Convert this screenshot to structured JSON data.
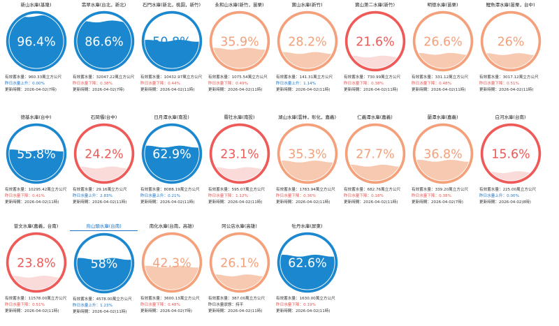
{
  "colors": {
    "blue": "#1a87cf",
    "orange": "#f4a07a",
    "red": "#ee5a58",
    "up": "#1a73c8",
    "down": "#e8544f"
  },
  "labels": {
    "capacity_prefix": "有效蓄水量：",
    "unit": "萬立方公尺",
    "update_prefix": "更新時間："
  },
  "reservoirs": [
    {
      "name": "新山水庫(基隆)",
      "pct": 96.4,
      "pct_text": "96.4%",
      "theme": "blue",
      "capacity": "960.33",
      "change_text": "昨日水量上升：0.00%",
      "change_dir": "up",
      "time": "2026-04-02(7時)"
    },
    {
      "name": "翡翠水庫(台北，新北)",
      "pct": 86.6,
      "pct_text": "86.6%",
      "theme": "blue",
      "capacity": "32047.22",
      "change_text": "昨日水量下降：0.38%",
      "change_dir": "down",
      "time": "2026-04-02(7時)"
    },
    {
      "name": "石門水庫(新北，桃園，新竹)",
      "pct": 50.8,
      "pct_text": "50.8%",
      "theme": "blue",
      "capacity": "10432.97",
      "change_text": "昨日水量下降：0.44%",
      "change_dir": "down",
      "time": "2026-04-02(11時)"
    },
    {
      "name": "永和山水庫(新竹，苗栗)",
      "pct": 35.9,
      "pct_text": "35.9%",
      "theme": "orange",
      "capacity": "1075.54",
      "change_text": "昨日水量下降：0.49%",
      "change_dir": "down",
      "time": "2026-04-02(11時)"
    },
    {
      "name": "寶山水庫(新竹)",
      "pct": 28.2,
      "pct_text": "28.2%",
      "theme": "orange",
      "capacity": "141.31",
      "change_text": "昨日水量上升：1.14%",
      "change_dir": "up",
      "time": "2026-04-02(11時)"
    },
    {
      "name": "寶山第二水庫(新竹)",
      "pct": 21.6,
      "pct_text": "21.6%",
      "theme": "red",
      "capacity": "730.99",
      "change_text": "昨日水量下降：0.38%",
      "change_dir": "down",
      "time": "2026-04-02(11時)"
    },
    {
      "name": "明德水庫(苗栗)",
      "pct": 26.6,
      "pct_text": "26.6%",
      "theme": "orange",
      "capacity": "331.12",
      "change_text": "昨日水量下降：0.48%",
      "change_dir": "down",
      "time": "2026-04-02(11時)"
    },
    {
      "name": "鯉魚潭水庫(苗栗，台中)",
      "pct": 26,
      "pct_text": "26%",
      "theme": "orange",
      "capacity": "3017.12",
      "change_text": "昨日水量下降：0.51%",
      "change_dir": "down",
      "time": "2026-04-02(11時)"
    },
    {
      "name": "德基水庫(台中)",
      "pct": 55.8,
      "pct_text": "55.8%",
      "theme": "blue",
      "capacity": "10295.42",
      "change_text": "昨日水量下降：0.41%",
      "change_dir": "down",
      "time": "2026-04-02(11時)"
    },
    {
      "name": "石岡壩(台中)",
      "pct": 24.2,
      "pct_text": "24.2%",
      "theme": "red",
      "capacity": "29.16",
      "change_text": "昨日水量上升：2.83%",
      "change_dir": "up",
      "time": "2026-04-02(11時)"
    },
    {
      "name": "日月潭水庫(南投)",
      "pct": 62.9,
      "pct_text": "62.9%",
      "theme": "blue",
      "capacity": "8088.19",
      "change_text": "昨日水量上升：0.21%",
      "change_dir": "up",
      "time": "2026-04-02(11時)"
    },
    {
      "name": "霧社水庫(南投)",
      "pct": 23.1,
      "pct_text": "23.1%",
      "theme": "red",
      "capacity": "595.07",
      "change_text": "昨日水量下降：1.12%",
      "change_dir": "down",
      "time": "2026-04-02(11時)"
    },
    {
      "name": "湖山水庫(雲林，彰化，嘉義)",
      "pct": 35.3,
      "pct_text": "35.3%",
      "theme": "orange",
      "capacity": "1783.94",
      "change_text": "昨日水量下降：0.36%",
      "change_dir": "down",
      "time": "2026-04-02(11時)"
    },
    {
      "name": "仁義潭水庫(嘉義)",
      "pct": 27.7,
      "pct_text": "27.7%",
      "theme": "orange",
      "capacity": "682.76",
      "change_text": "昨日水量下降：0.18%",
      "change_dir": "down",
      "time": "2026-04-02(11時)"
    },
    {
      "name": "蘭潭水庫(嘉義)",
      "pct": 36.8,
      "pct_text": "36.8%",
      "theme": "orange",
      "capacity": "339.20",
      "change_text": "昨日水量下降：0.38%",
      "change_dir": "down",
      "time": "2026-04-02(7時)"
    },
    {
      "name": "白河水庫(台南)",
      "pct": 15.6,
      "pct_text": "15.6%",
      "theme": "red",
      "capacity": "225.00",
      "change_text": "昨日水量上升：0.00%",
      "change_dir": "up",
      "time": "2026-04-02(8時)"
    },
    {
      "name": "曾文水庫(嘉義，台南)",
      "pct": 23.8,
      "pct_text": "23.8%",
      "theme": "red",
      "capacity": "11578.00",
      "change_text": "昨日水量下降：0.51%",
      "change_dir": "down",
      "time": "2026-04-02(11時)"
    },
    {
      "name": "烏山頭水庫(台南)",
      "pct": 58,
      "pct_text": "58%",
      "theme": "blue",
      "highlight": true,
      "capacity": "4578.00",
      "change_text": "昨日水量上升：1.23%",
      "change_dir": "up",
      "time": "2026-04-02(11時)"
    },
    {
      "name": "南化水庫(台南，高雄)",
      "pct": 42.3,
      "pct_text": "42.3%",
      "theme": "orange",
      "capacity": "3600.13",
      "change_text": "昨日水量下降：0.48%",
      "change_dir": "down",
      "time": "2026-04-02(7時)"
    },
    {
      "name": "阿公店水庫(高雄)",
      "pct": 26.1,
      "pct_text": "26.1%",
      "theme": "orange",
      "capacity": "387.00",
      "change_text": "昨日水量狀態：持平",
      "change_dir": "flat",
      "time": "2026-04-02(11時)"
    },
    {
      "name": "牡丹水庫(屏東)",
      "pct": 62.6,
      "pct_text": "62.6%",
      "theme": "blue",
      "capacity": "1630.00",
      "change_text": "昨日水量下降：0.19%",
      "change_dir": "down",
      "time": "2026-04-02(11時)"
    }
  ]
}
